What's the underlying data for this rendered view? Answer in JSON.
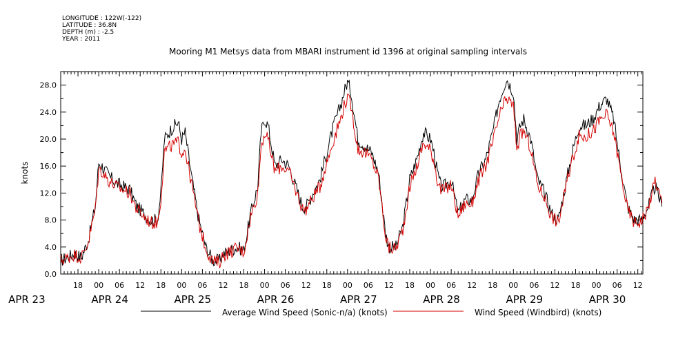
{
  "meta": {
    "longitude": "LONGITUDE : 122W(-122)",
    "latitude": "LATITUDE : 36.8N",
    "depth": "DEPTH (m) : -2.5",
    "year": "YEAR : 2011"
  },
  "chart_data": {
    "type": "line",
    "title": "Mooring M1 Metsys data from MBARI instrument id 1396 at original sampling intervals",
    "ylabel": "knots",
    "xlabel": "",
    "ylim": [
      0,
      30
    ],
    "yticks": [
      "0.0",
      "4.0",
      "8.0",
      "12.0",
      "16.0",
      "20.0",
      "24.0",
      "28.0"
    ],
    "xlim_hours": [
      13,
      187.5
    ],
    "xtick_hour_labels": [
      {
        "h": 18,
        "label": "18"
      },
      {
        "h": 24,
        "label": "00"
      },
      {
        "h": 30,
        "label": "06"
      },
      {
        "h": 36,
        "label": "12"
      },
      {
        "h": 42,
        "label": "18"
      },
      {
        "h": 48,
        "label": "00"
      },
      {
        "h": 54,
        "label": "06"
      },
      {
        "h": 60,
        "label": "12"
      },
      {
        "h": 66,
        "label": "18"
      },
      {
        "h": 72,
        "label": "00"
      },
      {
        "h": 78,
        "label": "06"
      },
      {
        "h": 84,
        "label": "12"
      },
      {
        "h": 90,
        "label": "18"
      },
      {
        "h": 96,
        "label": "00"
      },
      {
        "h": 102,
        "label": "06"
      },
      {
        "h": 108,
        "label": "12"
      },
      {
        "h": 114,
        "label": "18"
      },
      {
        "h": 120,
        "label": "00"
      },
      {
        "h": 126,
        "label": "06"
      },
      {
        "h": 132,
        "label": "12"
      },
      {
        "h": 138,
        "label": "18"
      },
      {
        "h": 144,
        "label": "00"
      },
      {
        "h": 150,
        "label": "06"
      },
      {
        "h": 156,
        "label": "12"
      },
      {
        "h": 162,
        "label": "18"
      },
      {
        "h": 168,
        "label": "00"
      },
      {
        "h": 174,
        "label": "06"
      },
      {
        "h": 180,
        "label": "12"
      }
    ],
    "day_labels": [
      {
        "h": 0,
        "label": "APR 23"
      },
      {
        "h": 24,
        "label": "APR 24"
      },
      {
        "h": 48,
        "label": "APR 25"
      },
      {
        "h": 72,
        "label": "APR 26"
      },
      {
        "h": 96,
        "label": "APR 27"
      },
      {
        "h": 120,
        "label": "APR 28"
      },
      {
        "h": 144,
        "label": "APR 29"
      },
      {
        "h": 168,
        "label": "APR 30"
      }
    ],
    "legend": [
      "Average Wind Speed (Sonic-n/a) (knots)",
      "Wind Speed (Windbird) (knots)"
    ],
    "series": [
      {
        "name": "Average Wind Speed (Sonic-n/a) (knots)",
        "color": "#000000",
        "x": [
          13,
          15,
          17,
          19,
          21,
          23,
          24,
          25,
          27,
          29,
          31,
          33,
          35,
          37,
          39,
          41,
          42,
          43,
          45,
          47,
          48,
          49,
          51,
          53,
          55,
          57,
          59,
          60,
          62,
          64,
          66,
          68,
          70,
          71,
          72,
          73,
          75,
          77,
          79,
          81,
          83,
          84,
          86,
          88,
          90,
          92,
          94,
          95,
          96,
          97,
          99,
          101,
          103,
          105,
          107,
          108,
          110,
          112,
          114,
          116,
          118,
          120,
          121,
          122,
          123,
          124,
          126,
          128,
          130,
          132,
          134,
          136,
          138,
          140,
          142,
          143,
          144,
          145,
          146,
          147,
          149,
          151,
          153,
          155,
          157,
          159,
          161,
          163,
          165,
          167,
          168,
          169,
          171,
          173,
          175,
          177,
          179,
          181,
          183,
          185,
          187
        ],
        "y": [
          2,
          2.5,
          3,
          2.5,
          5,
          10,
          16.5,
          16,
          14.5,
          13.5,
          13,
          12.5,
          10,
          9,
          8,
          8,
          12,
          20,
          21.5,
          22.5,
          20,
          21,
          14,
          8,
          4,
          2,
          2,
          3,
          3.5,
          4,
          3.5,
          9,
          13,
          21,
          23,
          22,
          16,
          17,
          16,
          13,
          10,
          10,
          12,
          14,
          18,
          22,
          25,
          27,
          28.5,
          27,
          20,
          19,
          18,
          15,
          6,
          4,
          4,
          7,
          14,
          17,
          21,
          20,
          18,
          15,
          13,
          13,
          14,
          9,
          11,
          11,
          15,
          17,
          21,
          26,
          29,
          28,
          27,
          20,
          22,
          23,
          20,
          14,
          12,
          9,
          8,
          13,
          18,
          22,
          22,
          23,
          24,
          25,
          26,
          23,
          16,
          10,
          8,
          8,
          10,
          13,
          10
        ]
      },
      {
        "name": "Wind Speed (Windbird) (knots)",
        "color": "#d40000",
        "x": [
          13,
          15,
          17,
          19,
          21,
          23,
          24,
          25,
          27,
          29,
          31,
          33,
          35,
          37,
          39,
          41,
          42,
          43,
          45,
          47,
          48,
          49,
          51,
          53,
          55,
          57,
          59,
          60,
          62,
          64,
          66,
          68,
          70,
          71,
          72,
          73,
          75,
          77,
          79,
          81,
          83,
          84,
          86,
          88,
          90,
          92,
          94,
          95,
          96,
          97,
          99,
          101,
          103,
          105,
          107,
          108,
          110,
          112,
          114,
          116,
          118,
          120,
          121,
          122,
          123,
          124,
          126,
          128,
          130,
          132,
          134,
          136,
          138,
          140,
          142,
          143,
          144,
          145,
          146,
          147,
          149,
          151,
          153,
          155,
          157,
          159,
          161,
          163,
          165,
          167,
          168,
          169,
          171,
          173,
          175,
          177,
          179,
          181,
          183,
          185,
          187
        ],
        "y": [
          2,
          2.4,
          2.9,
          2.4,
          4.8,
          9.5,
          15.5,
          15.2,
          13.8,
          13,
          12.5,
          12,
          9.6,
          8.6,
          7.6,
          7.6,
          11.2,
          18.2,
          19,
          19.5,
          18,
          18.5,
          13,
          7.5,
          3.8,
          1.8,
          1.8,
          2.8,
          3.3,
          3.8,
          3.3,
          8.5,
          12,
          19,
          21,
          19.8,
          15.2,
          16,
          15.2,
          12.4,
          9.6,
          9.6,
          11.4,
          13,
          16.5,
          20,
          23,
          25,
          26,
          25,
          18.5,
          18,
          17,
          14.2,
          5.6,
          3.8,
          3.8,
          6.6,
          13,
          15.8,
          19.4,
          18.4,
          16.8,
          14,
          12.4,
          12.4,
          13.2,
          8.6,
          10.4,
          10.4,
          14,
          16,
          19.4,
          23.5,
          26,
          25.5,
          24.8,
          18.6,
          20.4,
          21.2,
          18.6,
          13.2,
          11.4,
          8.6,
          7.6,
          12.4,
          17,
          20.4,
          20.4,
          21.2,
          22,
          22.8,
          23.6,
          21,
          15.2,
          9.6,
          7.6,
          7.8,
          9.8,
          14,
          10.5
        ]
      }
    ]
  }
}
